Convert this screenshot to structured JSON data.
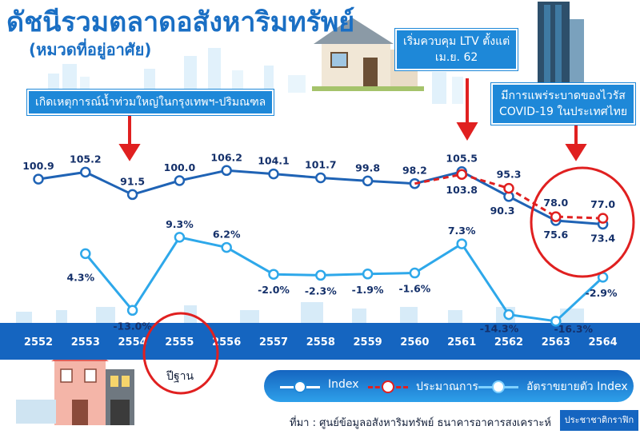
{
  "title": "ดัชนีรวมตลาดอสังหาริมทรัพย์",
  "subtitle": "(หมวดที่อยู่อาศัย)",
  "callouts": {
    "flood": "เกิดเหตุการณ์น้ำท่วมใหญ่ในกรุงเทพฯ-ปริมณฑล",
    "ltv_line1": "เริ่มควบคุม LTV ตั้งแต่",
    "ltv_line2": "เม.ย. 62",
    "covid_line1": "มีการแพร่ระบาดของไวรัส",
    "covid_line2": "COVID-19 ในประเทศไทย"
  },
  "base_year_label": "ปีฐาน",
  "legend": {
    "index": "Index",
    "estimate": "ประมาณการ",
    "growth": "อัตราขยายตัว Index"
  },
  "source": "ที่มา : ศูนย์ข้อมูลอสังหาริมทรัพย์ ธนาคารอาคารสงเคราะห์",
  "credit": "ประชาชาติกราฟิก",
  "colors": {
    "index_line": "#1f63b5",
    "estimate_line": "#e02020",
    "growth_line": "#2ea8ea",
    "label_text": "#14306a",
    "axis_band": "#1565c0",
    "highlight_circle": "#e02020"
  },
  "chart_data": {
    "type": "line",
    "x": [
      "2552",
      "2553",
      "2554",
      "2555",
      "2556",
      "2557",
      "2558",
      "2559",
      "2560",
      "2561",
      "2562",
      "2563",
      "2564"
    ],
    "series": [
      {
        "name": "Index",
        "values": [
          100.9,
          105.2,
          91.5,
          100.0,
          106.2,
          104.1,
          101.7,
          99.8,
          98.2,
          105.5,
          90.3,
          75.6,
          73.4
        ],
        "labels": [
          "100.9",
          "105.2",
          "91.5",
          "100.0",
          "106.2",
          "104.1",
          "101.7",
          "99.8",
          "98.2",
          "105.5",
          "90.3",
          "75.6",
          "73.4"
        ]
      },
      {
        "name": "ประมาณการ",
        "x": [
          "2560",
          "2561",
          "2562",
          "2563",
          "2564"
        ],
        "values": [
          98.2,
          103.8,
          95.3,
          78.0,
          77.0
        ],
        "labels": [
          "",
          "103.8",
          "95.3",
          "78.0",
          "77.0"
        ]
      },
      {
        "name": "อัตราขยายตัว Index",
        "values": [
          null,
          4.3,
          -13.0,
          9.3,
          6.2,
          -2.0,
          -2.3,
          -1.9,
          -1.6,
          7.3,
          -14.3,
          -16.3,
          -2.9
        ],
        "labels": [
          "",
          "4.3%",
          "-13.0%",
          "9.3%",
          "6.2%",
          "-2.0%",
          "-2.3%",
          "-1.9%",
          "-1.6%",
          "7.3%",
          "-14.3%",
          "-16.3%",
          "-2.9%"
        ]
      }
    ],
    "base_year": "2555"
  }
}
